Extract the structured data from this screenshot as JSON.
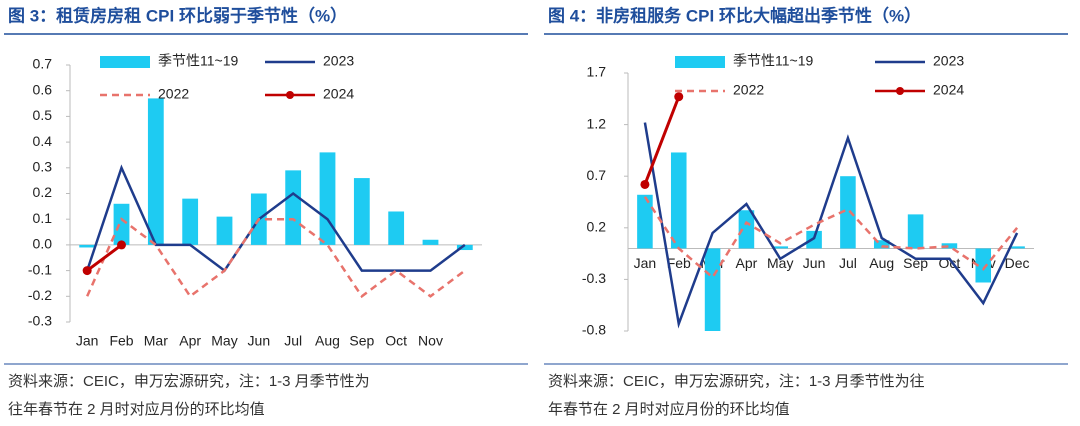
{
  "chart_data": [
    {
      "type": "bar",
      "title": "图 3：租赁房房租 CPI 环比弱于季节性（%）",
      "categories": [
        "Jan",
        "Feb",
        "Mar",
        "Apr",
        "May",
        "Jun",
        "Jul",
        "Aug",
        "Sep",
        "Oct",
        "Nov",
        null
      ],
      "ylim": [
        -0.3,
        0.7
      ],
      "yticks": [
        -0.3,
        -0.2,
        -0.1,
        {
          "value": 0,
          "label": "0.0"
        },
        0.1,
        0.2,
        0.3,
        0.4,
        0.5,
        0.6,
        0.7
      ],
      "series": [
        {
          "name": "季节性11~19",
          "type": "bar",
          "color": "#1ecbf2",
          "values": [
            -0.01,
            0.16,
            0.57,
            0.18,
            0.11,
            0.2,
            0.29,
            0.36,
            0.26,
            0.13,
            0.02,
            -0.02
          ]
        },
        {
          "name": "2023",
          "type": "line",
          "color": "#1f3c8c",
          "values": [
            -0.1,
            0.3,
            0,
            0,
            -0.1,
            0.1,
            0.2,
            0.1,
            -0.1,
            -0.1,
            -0.1,
            0
          ]
        },
        {
          "name": "2022",
          "type": "line",
          "dashed": true,
          "color": "#e8736c",
          "values": [
            -0.2,
            0.1,
            0,
            -0.2,
            -0.1,
            0.1,
            0.1,
            0,
            -0.2,
            -0.1,
            -0.2,
            -0.1
          ]
        },
        {
          "name": "2024",
          "type": "line",
          "markers": true,
          "color": "#c00000",
          "values": [
            -0.1,
            0,
            null,
            null,
            null,
            null,
            null,
            null,
            null,
            null,
            null,
            null
          ]
        }
      ],
      "source": [
        "资料来源：CEIC，申万宏源研究，注：1-3 月季节性为",
        "往年春节在 2 月时对应月份的环比均值"
      ]
    },
    {
      "type": "bar",
      "title": "图 4：非房租服务 CPI 环比大幅超出季节性（%）",
      "categories": [
        "Jan",
        "Feb",
        "Mar",
        "Apr",
        "May",
        "Jun",
        "Jul",
        "Aug",
        "Sep",
        "Oct",
        "Nov",
        "Dec"
      ],
      "ylim": [
        -0.8,
        1.7
      ],
      "yticks": [
        -0.8,
        -0.3,
        0.2,
        0.7,
        1.2,
        1.7
      ],
      "series": [
        {
          "name": "季节性11~19",
          "type": "bar",
          "color": "#1ecbf2",
          "values": [
            0.52,
            0.93,
            -0.8,
            0.37,
            0.02,
            0.17,
            0.7,
            0.08,
            0.33,
            0.05,
            -0.33,
            0.02
          ]
        },
        {
          "name": "2023",
          "type": "line",
          "color": "#1f3c8c",
          "values": [
            1.22,
            -0.73,
            0.15,
            0.43,
            -0.1,
            0.1,
            1.07,
            0.1,
            -0.1,
            -0.1,
            -0.53,
            0.15
          ]
        },
        {
          "name": "2022",
          "type": "line",
          "dashed": true,
          "color": "#e8736c",
          "values": [
            0.5,
            0,
            -0.28,
            0.25,
            0.05,
            0.23,
            0.38,
            0.02,
            0,
            0.02,
            -0.2,
            0.2
          ]
        },
        {
          "name": "2024",
          "type": "line",
          "markers": true,
          "color": "#c00000",
          "values": [
            0.62,
            1.47,
            null,
            null,
            null,
            null,
            null,
            null,
            null,
            null,
            null,
            null
          ]
        }
      ],
      "source": [
        "资料来源：CEIC，申万宏源研究，注：1-3 月季节性为往",
        "年春节在 2 月时对应月份的环比均值"
      ]
    }
  ]
}
